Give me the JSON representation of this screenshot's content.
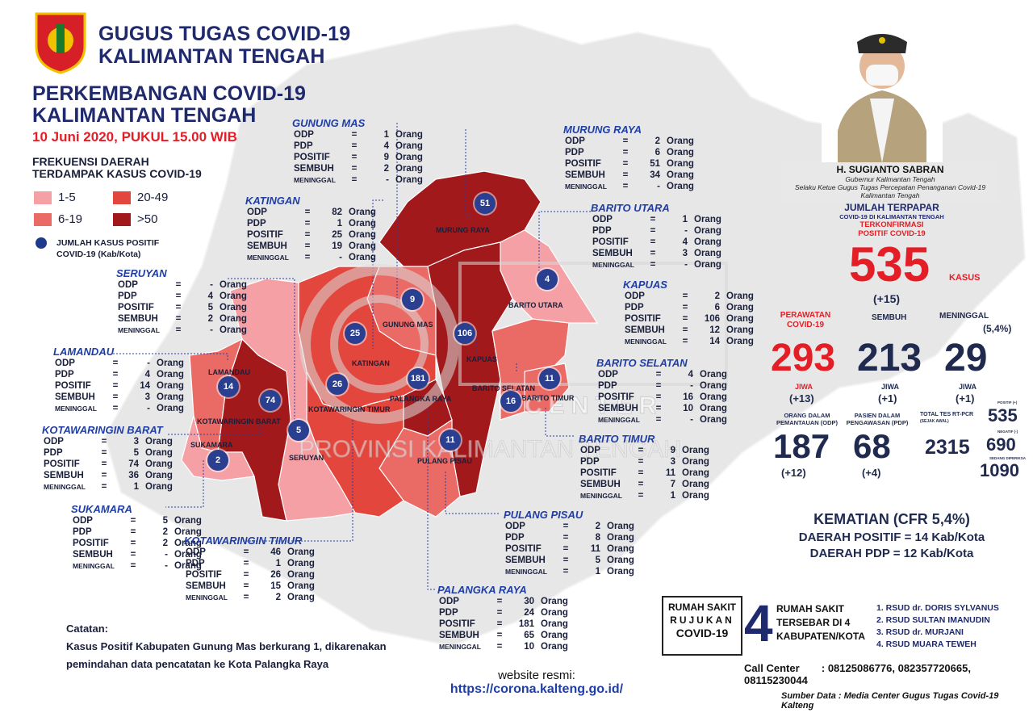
{
  "header": {
    "org_line1": "GUGUS TUGAS COVID-19",
    "org_line2": "KALIMANTAN TENGAH",
    "title_line1": "PERKEMBANGAN COVID-19",
    "title_line2": "KALIMANTAN TENGAH",
    "date": "10 Juni 2020, PUKUL 15.00 WIB"
  },
  "legend": {
    "title_line1": "FREKUENSI DAERAH",
    "title_line2": "TERDAMPAK KASUS COVID-19",
    "ranges": [
      {
        "label": "1-5",
        "color": "#f4a0a4"
      },
      {
        "label": "20-49",
        "color": "#e2463c"
      },
      {
        "label": "6-19",
        "color": "#ea6a66"
      },
      {
        "label": ">50",
        "color": "#a2191c"
      }
    ],
    "dot_label_line1": "JUMLAH KASUS POSITIF",
    "dot_label_line2": "COVID-19 (Kab/Kota)"
  },
  "row_labels": {
    "odp": "ODP",
    "pdp": "PDP",
    "positif": "POSITIF",
    "sembuh": "SEMBUH",
    "meninggal": "MENINGGAL",
    "eq": "=",
    "unit": "Orang"
  },
  "districts": [
    {
      "id": "gunung-mas",
      "name": "GUNUNG MAS",
      "odp": "1",
      "pdp": "4",
      "positif": "9",
      "sembuh": "2",
      "meninggal": "-"
    },
    {
      "id": "murung-raya",
      "name": "MURUNG RAYA",
      "odp": "2",
      "pdp": "6",
      "positif": "51",
      "sembuh": "34",
      "meninggal": "-"
    },
    {
      "id": "katingan",
      "name": "KATINGAN",
      "odp": "82",
      "pdp": "1",
      "positif": "25",
      "sembuh": "19",
      "meninggal": "-"
    },
    {
      "id": "barito-utara",
      "name": "BARITO UTARA",
      "odp": "1",
      "pdp": "-",
      "positif": "4",
      "sembuh": "3",
      "meninggal": "-"
    },
    {
      "id": "seruyan",
      "name": "SERUYAN",
      "odp": "-",
      "pdp": "4",
      "positif": "5",
      "sembuh": "2",
      "meninggal": "-"
    },
    {
      "id": "kapuas",
      "name": "KAPUAS",
      "odp": "2",
      "pdp": "6",
      "positif": "106",
      "sembuh": "12",
      "meninggal": "14"
    },
    {
      "id": "lamandau",
      "name": "LAMANDAU",
      "odp": "-",
      "pdp": "4",
      "positif": "14",
      "sembuh": "3",
      "meninggal": "-"
    },
    {
      "id": "barito-selatan",
      "name": "BARITO SELATAN",
      "odp": "4",
      "pdp": "-",
      "positif": "16",
      "sembuh": "10",
      "meninggal": "-"
    },
    {
      "id": "kotawaringin-barat",
      "name": "KOTAWARINGIN BARAT",
      "odp": "3",
      "pdp": "5",
      "positif": "74",
      "sembuh": "36",
      "meninggal": "1"
    },
    {
      "id": "barito-timur",
      "name": "BARITO TIMUR",
      "odp": "9",
      "pdp": "3",
      "positif": "11",
      "sembuh": "7",
      "meninggal": "1"
    },
    {
      "id": "sukamara",
      "name": "SUKAMARA",
      "odp": "5",
      "pdp": "2",
      "positif": "2",
      "sembuh": "-",
      "meninggal": "-"
    },
    {
      "id": "pulang-pisau",
      "name": "PULANG PISAU",
      "odp": "2",
      "pdp": "8",
      "positif": "11",
      "sembuh": "5",
      "meninggal": "1"
    },
    {
      "id": "kotawaringin-timur",
      "name": "KOTAWARINGIN TIMUR",
      "odp": "46",
      "pdp": "1",
      "positif": "26",
      "sembuh": "15",
      "meninggal": "2"
    },
    {
      "id": "palangka-raya",
      "name": "PALANGKA RAYA",
      "odp": "30",
      "pdp": "24",
      "positif": "181",
      "sembuh": "65",
      "meninggal": "10"
    }
  ],
  "map_labels": {
    "murung-raya": "MURUNG RAYA",
    "gunung-mas": "GUNUNG MAS",
    "barito-utara": "BARITO UTARA",
    "katingan": "KATINGAN",
    "kapuas": "KAPUAS",
    "lamandau": "LAMANDAU",
    "barito-selatan": "BARITO SELATAN",
    "barito-timur": "BARITO TIMUR",
    "palangka-raya": "PALANGKA RAYA",
    "kotawaringin-barat": "KOTAWARINGIN BARAT",
    "kotawaringin-timur": "KOTAWARINGIN TIMUR",
    "sukamara": "SUKAMARA",
    "seruyan": "SERUYAN",
    "pulang-pisau": "PULANG PISAU"
  },
  "region_colors": {
    "murung-raya": "#a2191c",
    "barito-utara": "#f4a0a4",
    "gunung-mas": "#ea6a66",
    "katingan": "#e2463c",
    "kapuas": "#a2191c",
    "barito-selatan": "#ea6a66",
    "barito-timur": "#ea6a66",
    "palangka-raya": "#a2191c",
    "pulang-pisau": "#ea6a66",
    "kotawaringin-timur": "#e2463c",
    "seruyan": "#f4a0a4",
    "kotawaringin-barat": "#a2191c",
    "lamandau": "#ea6a66",
    "sukamara": "#f4a0a4"
  },
  "markers": {
    "murung-raya": "51",
    "barito-utara": "4",
    "gunung-mas": "9",
    "katingan": "25",
    "kapuas": "106",
    "palangka-raya": "181",
    "kotawaringin-timur": "26",
    "barito-selatan": "16",
    "barito-timur": "11",
    "pulang-pisau": "11",
    "lamandau": "14",
    "kotawaringin-barat": "74",
    "seruyan": "5",
    "sukamara": "2"
  },
  "governor": {
    "name": "H. SUGIANTO SABRAN",
    "role1": "Gubernur Kalimantan Tengah",
    "role2": "Selaku Ketue Gugus Tugas Percepatan Penanganan Covid-19",
    "role3": "Kalimantan Tengah"
  },
  "summary": {
    "terpapar_title": "JUMLAH TERPAPAR",
    "terpapar_sub": "COVID-19 DI KALIMANTAN TENGAH",
    "konfirmasi_line1": "TERKONFIRMASI",
    "konfirmasi_line2": "POSITIF COVID-19",
    "total": "535",
    "total_unit": "KASUS",
    "total_delta": "(+15)",
    "perawatan_label1": "PERAWATAN",
    "perawatan_label2": "COVID-19",
    "perawatan": "293",
    "perawatan_unit": "JIWA",
    "perawatan_delta": "(+13)",
    "sembuh_label": "SEMBUH",
    "sembuh": "213",
    "sembuh_unit": "JIWA",
    "sembuh_delta": "(+1)",
    "meninggal_label": "MENINGGAL",
    "meninggal_pct": "(5,4%)",
    "meninggal": "29",
    "meninggal_unit": "JIWA",
    "meninggal_delta": "(+1)",
    "odp_label1": "ORANG DALAM",
    "odp_label2": "PEMANTAUAN (ODP)",
    "odp": "187",
    "odp_delta": "(+12)",
    "pdp_label1": "PASIEN DALAM",
    "pdp_label2": "PENGAWASAN (PDP)",
    "pdp": "68",
    "pdp_delta": "(+4)",
    "pcr_label1": "TOTAL TES RT-PCR",
    "pcr_label2": "(SEJAK AWAL)",
    "pcr_total": "2315",
    "pcr_positif_label": "POSITIF (+)",
    "pcr_positif": "535",
    "pcr_negatif_label": "NEGATIF (-)",
    "pcr_negatif": "690",
    "pcr_diperiksa_label": "SEDANG DIPERIKSA",
    "pcr_diperiksa": "1090"
  },
  "kematian": {
    "line1": "KEMATIAN (CFR 5,4%)",
    "line2": "DAERAH POSITIF = 14 Kab/Kota",
    "line3": "DAERAH PDP = 12 Kab/Kota"
  },
  "rumah_sakit": {
    "box_line1": "RUMAH SAKIT",
    "box_line2": "RUJUKAN",
    "box_line3": "COVID-19",
    "count": "4",
    "desc_line1": "RUMAH SAKIT",
    "desc_line2": "TERSEBAR DI 4",
    "desc_line3": "KABUPATEN/KOTA",
    "list": [
      "1. RSUD dr. DORIS SYLVANUS",
      "2. RSUD SULTAN IMANUDIN",
      "3. RSUD dr. MURJANI",
      "4. RSUD MUARA TEWEH"
    ]
  },
  "call_center": {
    "label": "Call Center",
    "numbers": ": 08125086776, 082357720665, 08115230044"
  },
  "source": "Sumber Data : Media Center Gugus Tugas Covid-19 Kalteng",
  "catatan": {
    "title": "Catatan:",
    "line1": "Kasus Positif Kabupaten Gunung Mas berkurang 1, dikarenakan",
    "line2": "pemindahan data pencatatan ke Kota Palangka Raya"
  },
  "website": {
    "label": "website resmi:",
    "url": "https://corona.kalteng.go.id/"
  },
  "watermark": {
    "line1": "PROVINSI KALIMANTAN TENGAH",
    "word": "CENTER"
  },
  "colors": {
    "navy": "#1f2a6e",
    "red": "#e41e26",
    "blue": "#1f3ea6"
  }
}
